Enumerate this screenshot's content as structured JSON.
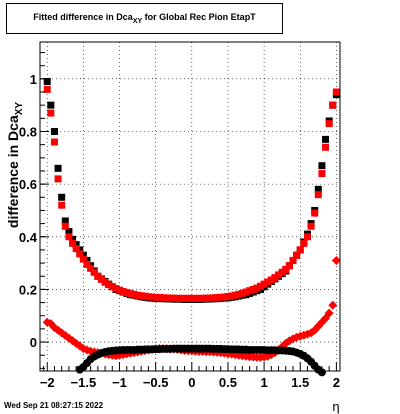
{
  "title": {
    "prefix": "Fitted difference in Dca",
    "subscript": "XY",
    "suffix": " for Global Rec Pion EtapT"
  },
  "footer": {
    "timestamp": "Wed Sep 21 08:27:15 2022"
  },
  "colors": {
    "series_black": "#000000",
    "series_red": "#ff0000",
    "grid": "#000000"
  },
  "chart_data": {
    "type": "scatter",
    "xlabel": "η",
    "ylabel": "difference in Dca",
    "ylabel_subscript": "XY",
    "xlim": [
      -2.1,
      2.05
    ],
    "ylim": [
      -0.11,
      1.14
    ],
    "x_ticks": [
      {
        "value": -2,
        "label": "−2"
      },
      {
        "value": -1.5,
        "label": "−1.5"
      },
      {
        "value": -1,
        "label": "−1"
      },
      {
        "value": -0.5,
        "label": "−0.5"
      },
      {
        "value": 0,
        "label": "0"
      },
      {
        "value": 0.5,
        "label": "0.5"
      },
      {
        "value": 1,
        "label": "1"
      },
      {
        "value": 1.5,
        "label": "1.5"
      },
      {
        "value": 2,
        "label": "2"
      }
    ],
    "y_ticks": [
      {
        "value": 0,
        "label": "0"
      },
      {
        "value": 0.2,
        "label": "0.2"
      },
      {
        "value": 0.4,
        "label": "0.4"
      },
      {
        "value": 0.6,
        "label": "0.6"
      },
      {
        "value": 0.8,
        "label": "0.8"
      },
      {
        "value": 1,
        "label": "1"
      }
    ],
    "grid": true,
    "series": [
      {
        "marker": "square",
        "color": "#000000",
        "x": [
          -2.0,
          -1.95,
          -1.9,
          -1.85,
          -1.8,
          -1.75,
          -1.7,
          -1.65,
          -1.6,
          -1.55,
          -1.5,
          -1.45,
          -1.4,
          -1.35,
          -1.3,
          -1.25,
          -1.2,
          -1.15,
          -1.1,
          -1.05,
          -1.0,
          -0.95,
          -0.9,
          -0.85,
          -0.8,
          -0.75,
          -0.7,
          -0.65,
          -0.6,
          -0.55,
          -0.5,
          -0.45,
          -0.4,
          -0.35,
          -0.3,
          -0.25,
          -0.2,
          -0.15,
          -0.1,
          -0.05,
          0.0,
          0.05,
          0.1,
          0.15,
          0.2,
          0.25,
          0.3,
          0.35,
          0.4,
          0.45,
          0.5,
          0.55,
          0.6,
          0.65,
          0.7,
          0.75,
          0.8,
          0.85,
          0.9,
          0.95,
          1.0,
          1.05,
          1.1,
          1.15,
          1.2,
          1.25,
          1.3,
          1.35,
          1.4,
          1.45,
          1.5,
          1.55,
          1.6,
          1.65,
          1.7,
          1.75,
          1.8,
          1.85,
          1.9,
          1.95,
          2.0
        ],
        "y": [
          0.99,
          0.9,
          0.8,
          0.66,
          0.55,
          0.46,
          0.42,
          0.39,
          0.37,
          0.35,
          0.33,
          0.31,
          0.29,
          0.27,
          0.25,
          0.24,
          0.23,
          0.22,
          0.21,
          0.2,
          0.195,
          0.19,
          0.185,
          0.18,
          0.178,
          0.175,
          0.172,
          0.17,
          0.168,
          0.167,
          0.166,
          0.165,
          0.165,
          0.164,
          0.164,
          0.163,
          0.163,
          0.163,
          0.162,
          0.162,
          0.162,
          0.162,
          0.162,
          0.163,
          0.163,
          0.164,
          0.164,
          0.165,
          0.166,
          0.167,
          0.168,
          0.17,
          0.172,
          0.175,
          0.178,
          0.18,
          0.185,
          0.19,
          0.195,
          0.2,
          0.21,
          0.22,
          0.23,
          0.24,
          0.25,
          0.26,
          0.27,
          0.29,
          0.31,
          0.33,
          0.35,
          0.38,
          0.41,
          0.45,
          0.5,
          0.58,
          0.67,
          0.77,
          0.84,
          0.9,
          0.94
        ]
      },
      {
        "marker": "square",
        "color": "#ff0000",
        "x": [
          -2.0,
          -1.95,
          -1.9,
          -1.85,
          -1.8,
          -1.75,
          -1.7,
          -1.65,
          -1.6,
          -1.55,
          -1.5,
          -1.45,
          -1.4,
          -1.35,
          -1.3,
          -1.25,
          -1.2,
          -1.15,
          -1.1,
          -1.05,
          -1.0,
          -0.95,
          -0.9,
          -0.85,
          -0.8,
          -0.75,
          -0.7,
          -0.65,
          -0.6,
          -0.55,
          -0.5,
          -0.45,
          -0.4,
          -0.35,
          -0.3,
          -0.25,
          -0.2,
          -0.15,
          -0.1,
          -0.05,
          0.0,
          0.05,
          0.1,
          0.15,
          0.2,
          0.25,
          0.3,
          0.35,
          0.4,
          0.45,
          0.5,
          0.55,
          0.6,
          0.65,
          0.7,
          0.75,
          0.8,
          0.85,
          0.9,
          0.95,
          1.0,
          1.05,
          1.1,
          1.15,
          1.2,
          1.25,
          1.3,
          1.35,
          1.4,
          1.45,
          1.5,
          1.55,
          1.6,
          1.65,
          1.7,
          1.75,
          1.8,
          1.85,
          1.9,
          1.95,
          2.0
        ],
        "y": [
          0.96,
          0.87,
          0.76,
          0.62,
          0.52,
          0.44,
          0.4,
          0.375,
          0.355,
          0.335,
          0.315,
          0.295,
          0.28,
          0.265,
          0.25,
          0.238,
          0.227,
          0.218,
          0.21,
          0.203,
          0.197,
          0.192,
          0.188,
          0.184,
          0.181,
          0.178,
          0.176,
          0.174,
          0.172,
          0.171,
          0.17,
          0.169,
          0.168,
          0.168,
          0.167,
          0.167,
          0.166,
          0.166,
          0.166,
          0.166,
          0.166,
          0.166,
          0.166,
          0.166,
          0.167,
          0.167,
          0.168,
          0.169,
          0.17,
          0.171,
          0.173,
          0.175,
          0.178,
          0.181,
          0.185,
          0.19,
          0.195,
          0.2,
          0.205,
          0.212,
          0.22,
          0.228,
          0.236,
          0.245,
          0.255,
          0.265,
          0.276,
          0.29,
          0.31,
          0.33,
          0.35,
          0.375,
          0.4,
          0.44,
          0.49,
          0.56,
          0.64,
          0.74,
          0.83,
          0.9,
          0.95
        ]
      },
      {
        "marker": "diamond",
        "color": "#ff0000",
        "x": [
          -2.0,
          -1.95,
          -1.9,
          -1.85,
          -1.8,
          -1.75,
          -1.7,
          -1.65,
          -1.6,
          -1.55,
          -1.5,
          -1.45,
          -1.4,
          -1.35,
          -1.3,
          -1.25,
          -1.2,
          -1.15,
          -1.1,
          -1.05,
          -1.0,
          -0.95,
          -0.9,
          -0.85,
          -0.8,
          -0.75,
          -0.7,
          -0.65,
          -0.6,
          -0.55,
          -0.5,
          -0.45,
          -0.4,
          -0.35,
          -0.3,
          -0.25,
          -0.2,
          -0.15,
          -0.1,
          -0.05,
          0.0,
          0.05,
          0.1,
          0.15,
          0.2,
          0.25,
          0.3,
          0.35,
          0.4,
          0.45,
          0.5,
          0.55,
          0.6,
          0.65,
          0.7,
          0.75,
          0.8,
          0.85,
          0.9,
          0.95,
          1.0,
          1.05,
          1.1,
          1.15,
          1.2,
          1.25,
          1.3,
          1.35,
          1.4,
          1.45,
          1.5,
          1.55,
          1.6,
          1.65,
          1.7,
          1.75,
          1.8,
          1.85,
          1.9,
          1.95,
          2.0
        ],
        "y": [
          0.075,
          0.07,
          0.055,
          0.045,
          0.035,
          0.025,
          0.015,
          0.005,
          -0.005,
          -0.015,
          -0.025,
          -0.03,
          -0.035,
          -0.038,
          -0.04,
          -0.042,
          -0.045,
          -0.048,
          -0.05,
          -0.052,
          -0.05,
          -0.048,
          -0.045,
          -0.042,
          -0.04,
          -0.038,
          -0.035,
          -0.033,
          -0.03,
          -0.028,
          -0.026,
          -0.025,
          -0.025,
          -0.025,
          -0.026,
          -0.027,
          -0.028,
          -0.03,
          -0.032,
          -0.033,
          -0.034,
          -0.035,
          -0.036,
          -0.036,
          -0.037,
          -0.037,
          -0.038,
          -0.039,
          -0.04,
          -0.042,
          -0.044,
          -0.046,
          -0.048,
          -0.05,
          -0.052,
          -0.054,
          -0.056,
          -0.057,
          -0.058,
          -0.058,
          -0.057,
          -0.054,
          -0.048,
          -0.04,
          -0.03,
          -0.018,
          -0.005,
          0.005,
          0.012,
          0.018,
          0.022,
          0.026,
          0.03,
          0.035,
          0.045,
          0.06,
          0.075,
          0.09,
          0.11,
          0.14,
          0.31
        ]
      },
      {
        "marker": "circle",
        "color": "#000000",
        "x": [
          -1.55,
          -1.5,
          -1.45,
          -1.4,
          -1.35,
          -1.3,
          -1.25,
          -1.2,
          -1.15,
          -1.1,
          -1.05,
          -1.0,
          -0.95,
          -0.9,
          -0.85,
          -0.8,
          -0.75,
          -0.7,
          -0.65,
          -0.6,
          -0.55,
          -0.5,
          -0.45,
          -0.4,
          -0.35,
          -0.3,
          -0.25,
          -0.2,
          -0.15,
          -0.1,
          -0.05,
          0.0,
          0.05,
          0.1,
          0.15,
          0.2,
          0.25,
          0.3,
          0.35,
          0.4,
          0.45,
          0.5,
          0.55,
          0.6,
          0.65,
          0.7,
          0.75,
          0.8,
          0.85,
          0.9,
          0.95,
          1.0,
          1.05,
          1.1,
          1.15,
          1.2,
          1.25,
          1.3,
          1.35,
          1.4,
          1.45,
          1.5,
          1.55,
          1.6,
          1.65,
          1.7,
          1.75,
          1.8
        ],
        "y": [
          -0.105,
          -0.095,
          -0.08,
          -0.065,
          -0.055,
          -0.048,
          -0.042,
          -0.038,
          -0.035,
          -0.033,
          -0.032,
          -0.031,
          -0.03,
          -0.03,
          -0.03,
          -0.03,
          -0.029,
          -0.029,
          -0.028,
          -0.028,
          -0.028,
          -0.027,
          -0.027,
          -0.026,
          -0.026,
          -0.026,
          -0.025,
          -0.025,
          -0.025,
          -0.025,
          -0.025,
          -0.025,
          -0.025,
          -0.025,
          -0.025,
          -0.025,
          -0.025,
          -0.026,
          -0.026,
          -0.026,
          -0.027,
          -0.027,
          -0.028,
          -0.028,
          -0.028,
          -0.029,
          -0.029,
          -0.03,
          -0.03,
          -0.03,
          -0.03,
          -0.03,
          -0.031,
          -0.031,
          -0.031,
          -0.032,
          -0.032,
          -0.033,
          -0.034,
          -0.036,
          -0.04,
          -0.045,
          -0.052,
          -0.062,
          -0.075,
          -0.09,
          -0.105,
          -0.115
        ]
      }
    ]
  }
}
